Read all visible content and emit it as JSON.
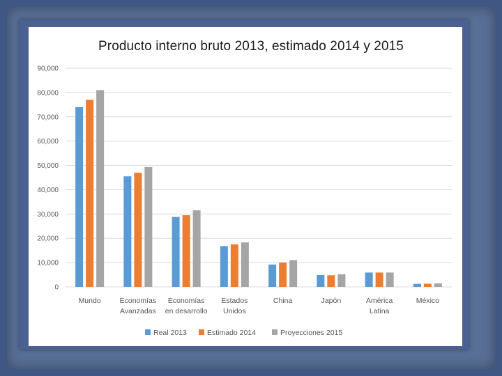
{
  "chart_data": {
    "type": "bar",
    "title": "Producto interno bruto 2013, estimado 2014 y 2015",
    "xlabel": "",
    "ylabel": "",
    "ylim": [
      0,
      90000
    ],
    "yticks": [
      0,
      10000,
      20000,
      30000,
      40000,
      50000,
      60000,
      70000,
      80000,
      90000
    ],
    "ytick_labels": [
      "0",
      "10,000",
      "20,000",
      "30,000",
      "40,000",
      "50,000",
      "60,000",
      "70,000",
      "80,000",
      "90,000"
    ],
    "grid": true,
    "legend_position": "bottom",
    "categories": [
      [
        "Mundo"
      ],
      [
        "Economías",
        "Avanzadas"
      ],
      [
        "Economías",
        "en desarrollo"
      ],
      [
        "Estados",
        "Unidos"
      ],
      [
        "China"
      ],
      [
        "Japón"
      ],
      [
        "América",
        "Latina"
      ],
      [
        "México"
      ]
    ],
    "series": [
      {
        "name": "Real 2013",
        "color": "#5b9bd5",
        "values": [
          74000,
          45500,
          28800,
          16800,
          9200,
          4900,
          5900,
          1260
        ]
      },
      {
        "name": "Estimado 2014",
        "color": "#ed7d31",
        "values": [
          77000,
          47000,
          29500,
          17500,
          10000,
          4800,
          5900,
          1300
        ]
      },
      {
        "name": "Proyecciones 2015",
        "color": "#a5a5a5",
        "values": [
          81000,
          49300,
          31500,
          18300,
          11000,
          5200,
          5900,
          1420
        ]
      }
    ]
  }
}
